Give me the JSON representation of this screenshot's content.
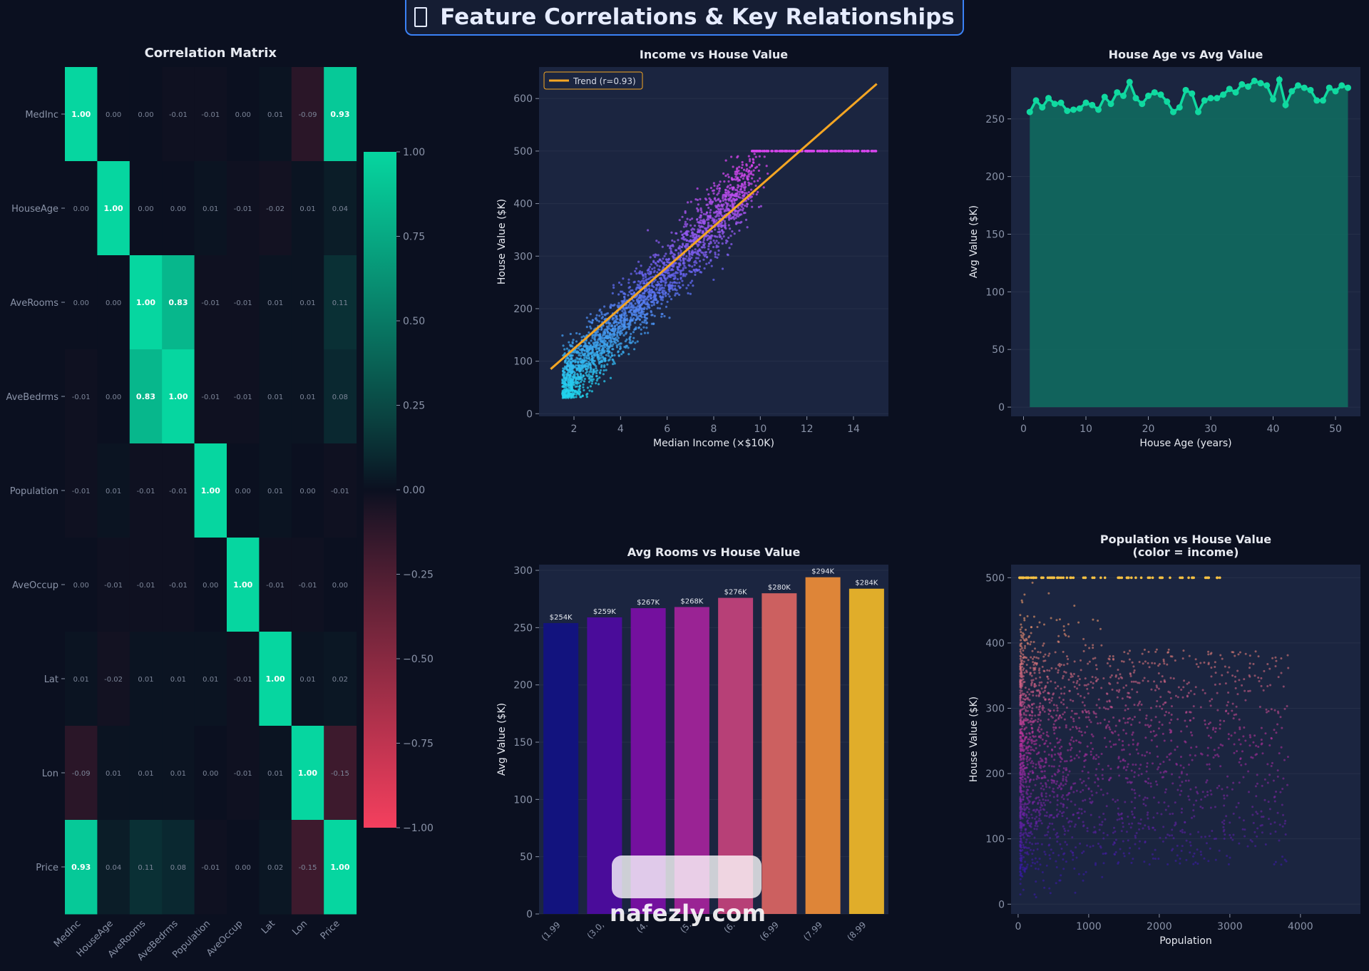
{
  "page_title": "Feature Correlations & Key Relationships",
  "watermark": "nafezly.com",
  "chart_data": [
    {
      "type": "heatmap",
      "title": "Correlation Matrix",
      "labels": [
        "MedInc",
        "HouseAge",
        "AveRooms",
        "AveBedrms",
        "Population",
        "AveOccup",
        "Lat",
        "Lon",
        "Price"
      ],
      "matrix": [
        [
          1.0,
          0.0,
          -0.0,
          -0.01,
          -0.01,
          -0.0,
          0.01,
          -0.09,
          0.93
        ],
        [
          0.0,
          1.0,
          -0.0,
          0.0,
          0.01,
          -0.01,
          -0.02,
          0.01,
          0.04
        ],
        [
          -0.0,
          -0.0,
          1.0,
          0.83,
          -0.01,
          -0.01,
          0.01,
          0.01,
          0.11
        ],
        [
          -0.01,
          0.0,
          0.83,
          1.0,
          -0.01,
          -0.01,
          0.01,
          0.01,
          0.08
        ],
        [
          -0.01,
          0.01,
          -0.01,
          -0.01,
          1.0,
          0.0,
          0.01,
          0.0,
          -0.01
        ],
        [
          -0.0,
          -0.01,
          -0.01,
          -0.01,
          0.0,
          1.0,
          -0.01,
          -0.01,
          -0.0
        ],
        [
          0.01,
          -0.02,
          0.01,
          0.01,
          0.01,
          -0.01,
          1.0,
          0.01,
          0.02
        ],
        [
          -0.09,
          0.01,
          0.01,
          0.01,
          0.0,
          -0.01,
          0.01,
          1.0,
          -0.15
        ],
        [
          0.93,
          0.04,
          0.11,
          0.08,
          -0.01,
          -0.0,
          0.02,
          -0.15,
          1.0
        ]
      ],
      "colorbar_ticks": [
        "1.00",
        "0.75",
        "0.50",
        "0.25",
        "0.00",
        "−0.25",
        "−0.50",
        "−0.75",
        "−1.00"
      ],
      "colorbar_range": [
        -1,
        1
      ],
      "colors": {
        "positive": "#06d6a0",
        "zero": "#0b1020",
        "negative": "#f43f5e"
      }
    },
    {
      "type": "scatter",
      "title": "Income vs House Value",
      "xlabel": "Median Income (×$10K)",
      "ylabel": "House Value ($K)",
      "xlim": [
        0.5,
        15.5
      ],
      "ylim": [
        -5,
        660
      ],
      "xticks": [
        2,
        4,
        6,
        8,
        10,
        12,
        14
      ],
      "yticks": [
        0,
        100,
        200,
        300,
        400,
        500,
        600
      ],
      "legend": "Trend (r=0.93)",
      "trend": {
        "x": [
          1,
          15
        ],
        "y": [
          85,
          628
        ]
      },
      "cap_value": 500,
      "colors": {
        "low": "#22d3ee",
        "mid": "#6366f1",
        "high": "#d946ef",
        "trend": "#f5a623"
      }
    },
    {
      "type": "area",
      "title": "House Age vs Avg Value",
      "xlabel": "House Age (years)",
      "ylabel": "Avg Value ($K)",
      "xlim": [
        -2,
        54
      ],
      "ylim": [
        -8,
        295
      ],
      "xticks": [
        0,
        10,
        20,
        30,
        40,
        50
      ],
      "yticks": [
        0,
        50,
        100,
        150,
        200,
        250
      ],
      "x": [
        1,
        2,
        3,
        4,
        5,
        6,
        7,
        8,
        9,
        10,
        11,
        12,
        13,
        14,
        15,
        16,
        17,
        18,
        19,
        20,
        21,
        22,
        23,
        24,
        25,
        26,
        27,
        28,
        29,
        30,
        31,
        32,
        33,
        34,
        35,
        36,
        37,
        38,
        39,
        40,
        41,
        42,
        43,
        44,
        45,
        46,
        47,
        48,
        49,
        50,
        51,
        52
      ],
      "values": [
        256,
        266,
        260,
        268,
        263,
        264,
        257,
        258,
        259,
        264,
        262,
        258,
        269,
        263,
        273,
        270,
        282,
        268,
        263,
        270,
        273,
        271,
        265,
        256,
        260,
        275,
        272,
        256,
        266,
        268,
        268,
        271,
        276,
        273,
        280,
        278,
        283,
        281,
        279,
        267,
        284,
        262,
        274,
        279,
        277,
        275,
        266,
        266,
        277,
        274,
        279,
        277
      ],
      "colors": {
        "line": "#10d9a0",
        "fill": "#0f6e62"
      }
    },
    {
      "type": "bar",
      "title": "Avg Rooms vs House Value",
      "xlabel": "",
      "ylabel": "Avg Value ($K)",
      "ylim": [
        0,
        305
      ],
      "yticks": [
        0,
        50,
        100,
        150,
        200,
        250,
        300
      ],
      "categories": [
        "(1.99",
        "(3.0,",
        "(4.",
        "(5.",
        "(6.",
        "(6.99",
        "(7.99",
        "(8.99"
      ],
      "values": [
        254,
        259,
        267,
        268,
        276,
        280,
        294,
        284
      ],
      "data_labels": [
        "$254K",
        "$259K",
        "$267K",
        "$268K",
        "$276K",
        "$280K",
        "$294K",
        "$284K"
      ],
      "colors": [
        "#12137e",
        "#4a0c9a",
        "#74109e",
        "#9a2394",
        "#b74077",
        "#cc6060",
        "#de8538",
        "#e0ad2a"
      ]
    },
    {
      "type": "scatter",
      "title": "Population vs House Value\n(color = income)",
      "xlabel": "Population",
      "ylabel": "House Value ($K)",
      "xlim": [
        -100,
        4850
      ],
      "ylim": [
        -15,
        520
      ],
      "xticks": [
        0,
        1000,
        2000,
        3000,
        4000
      ],
      "yticks": [
        0,
        100,
        200,
        300,
        400,
        500
      ],
      "cap_value": 500,
      "colors": {
        "low": "#3b1aa8",
        "mid": "#b0309a",
        "high": "#f59e6b",
        "cap": "#f5c043"
      }
    }
  ]
}
